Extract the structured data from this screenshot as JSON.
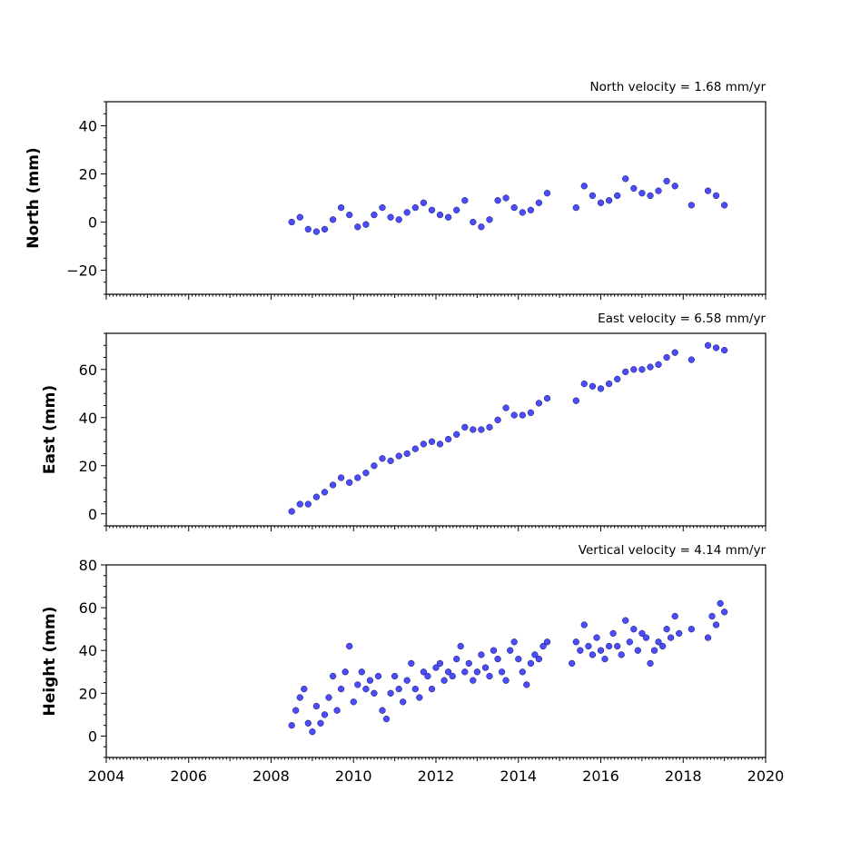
{
  "chart_data": [
    {
      "type": "scatter",
      "name": "north",
      "annotation": "North velocity = 1.68 mm/yr",
      "ylabel": "North (mm)",
      "xlim": [
        2004,
        2020
      ],
      "ylim": [
        -30,
        50
      ],
      "yticks": [
        -20,
        0,
        20,
        40
      ],
      "ytick_labels": [
        "−20",
        "0",
        "20",
        "40"
      ],
      "xtick_labels_shown": false,
      "marker_color": "#4b4bff",
      "series": [
        {
          "x": [
            2008.5,
            2008.7,
            2008.9,
            2009.1,
            2009.3,
            2009.5,
            2009.7,
            2009.9,
            2010.1,
            2010.3,
            2010.5,
            2010.7,
            2010.9,
            2011.1,
            2011.3,
            2011.5,
            2011.7,
            2011.9,
            2012.1,
            2012.3,
            2012.5,
            2012.7,
            2012.9,
            2013.1,
            2013.3,
            2013.5,
            2013.7,
            2013.9,
            2014.1,
            2014.3,
            2014.5,
            2014.7,
            2015.4,
            2015.6,
            2015.8,
            2016.0,
            2016.2,
            2016.4,
            2016.6,
            2016.8,
            2017.0,
            2017.2,
            2017.4,
            2017.6,
            2017.8,
            2018.2,
            2018.6,
            2018.8,
            2019.0
          ],
          "y": [
            0,
            2,
            -3,
            -4,
            -3,
            1,
            6,
            3,
            -2,
            -1,
            3,
            6,
            2,
            1,
            4,
            6,
            8,
            5,
            3,
            2,
            5,
            9,
            0,
            -2,
            1,
            9,
            10,
            6,
            4,
            5,
            8,
            12,
            6,
            15,
            11,
            8,
            9,
            11,
            18,
            14,
            12,
            11,
            13,
            17,
            15,
            7,
            13,
            11,
            7
          ]
        }
      ]
    },
    {
      "type": "scatter",
      "name": "east",
      "annotation": "East velocity = 6.58 mm/yr",
      "ylabel": "East (mm)",
      "xlim": [
        2004,
        2020
      ],
      "ylim": [
        -5,
        75
      ],
      "yticks": [
        0,
        20,
        40,
        60
      ],
      "ytick_labels": [
        "0",
        "20",
        "40",
        "60"
      ],
      "xtick_labels_shown": false,
      "marker_color": "#4b4bff",
      "series": [
        {
          "x": [
            2008.5,
            2008.7,
            2008.9,
            2009.1,
            2009.3,
            2009.5,
            2009.7,
            2009.9,
            2010.1,
            2010.3,
            2010.5,
            2010.7,
            2010.9,
            2011.1,
            2011.3,
            2011.5,
            2011.7,
            2011.9,
            2012.1,
            2012.3,
            2012.5,
            2012.7,
            2012.9,
            2013.1,
            2013.3,
            2013.5,
            2013.7,
            2013.9,
            2014.1,
            2014.3,
            2014.5,
            2014.7,
            2015.4,
            2015.6,
            2015.8,
            2016.0,
            2016.2,
            2016.4,
            2016.6,
            2016.8,
            2017.0,
            2017.2,
            2017.4,
            2017.6,
            2017.8,
            2018.2,
            2018.6,
            2018.8,
            2019.0
          ],
          "y": [
            1,
            4,
            4,
            7,
            9,
            12,
            15,
            13,
            15,
            17,
            20,
            23,
            22,
            24,
            25,
            27,
            29,
            30,
            29,
            31,
            33,
            36,
            35,
            35,
            36,
            39,
            44,
            41,
            41,
            42,
            46,
            48,
            47,
            54,
            53,
            52,
            54,
            56,
            59,
            60,
            60,
            61,
            62,
            65,
            67,
            64,
            70,
            69,
            68
          ]
        }
      ]
    },
    {
      "type": "scatter",
      "name": "height",
      "annotation": "Vertical velocity = 4.14 mm/yr",
      "ylabel": "Height (mm)",
      "xlim": [
        2004,
        2020
      ],
      "ylim": [
        -10,
        80
      ],
      "yticks": [
        0,
        20,
        40,
        60,
        80
      ],
      "ytick_labels": [
        "0",
        "20",
        "40",
        "60",
        "80"
      ],
      "xticks": [
        2004,
        2006,
        2008,
        2010,
        2012,
        2014,
        2016,
        2018,
        2020
      ],
      "xtick_labels": [
        "2004",
        "2006",
        "2008",
        "2010",
        "2012",
        "2014",
        "2016",
        "2018",
        "2020"
      ],
      "xtick_labels_shown": true,
      "marker_color": "#4b4bff",
      "series": [
        {
          "x": [
            2008.5,
            2008.6,
            2008.7,
            2008.8,
            2008.9,
            2009.0,
            2009.1,
            2009.2,
            2009.3,
            2009.4,
            2009.5,
            2009.6,
            2009.7,
            2009.8,
            2009.9,
            2010.0,
            2010.1,
            2010.2,
            2010.3,
            2010.4,
            2010.5,
            2010.6,
            2010.7,
            2010.8,
            2010.9,
            2011.0,
            2011.1,
            2011.2,
            2011.3,
            2011.4,
            2011.5,
            2011.6,
            2011.7,
            2011.8,
            2011.9,
            2012.0,
            2012.1,
            2012.2,
            2012.3,
            2012.4,
            2012.5,
            2012.6,
            2012.7,
            2012.8,
            2012.9,
            2013.0,
            2013.1,
            2013.2,
            2013.3,
            2013.4,
            2013.5,
            2013.6,
            2013.7,
            2013.8,
            2013.9,
            2014.0,
            2014.1,
            2014.2,
            2014.3,
            2014.4,
            2014.5,
            2014.6,
            2014.7,
            2015.3,
            2015.4,
            2015.5,
            2015.6,
            2015.7,
            2015.8,
            2015.9,
            2016.0,
            2016.1,
            2016.2,
            2016.3,
            2016.4,
            2016.5,
            2016.6,
            2016.7,
            2016.8,
            2016.9,
            2017.0,
            2017.1,
            2017.2,
            2017.3,
            2017.4,
            2017.5,
            2017.6,
            2017.7,
            2017.8,
            2017.9,
            2018.2,
            2018.6,
            2018.7,
            2018.8,
            2018.9,
            2019.0
          ],
          "y": [
            5,
            12,
            18,
            22,
            6,
            2,
            14,
            6,
            10,
            18,
            28,
            12,
            22,
            30,
            42,
            16,
            24,
            30,
            22,
            26,
            20,
            28,
            12,
            8,
            20,
            28,
            22,
            16,
            26,
            34,
            22,
            18,
            30,
            28,
            22,
            32,
            34,
            26,
            30,
            28,
            36,
            42,
            30,
            34,
            26,
            30,
            38,
            32,
            28,
            40,
            36,
            30,
            26,
            40,
            44,
            36,
            30,
            24,
            34,
            38,
            36,
            42,
            44,
            34,
            44,
            40,
            52,
            42,
            38,
            46,
            40,
            36,
            42,
            48,
            42,
            38,
            54,
            44,
            50,
            40,
            48,
            46,
            34,
            40,
            44,
            42,
            50,
            46,
            56,
            48,
            50,
            46,
            56,
            52,
            62,
            58
          ]
        }
      ]
    }
  ]
}
